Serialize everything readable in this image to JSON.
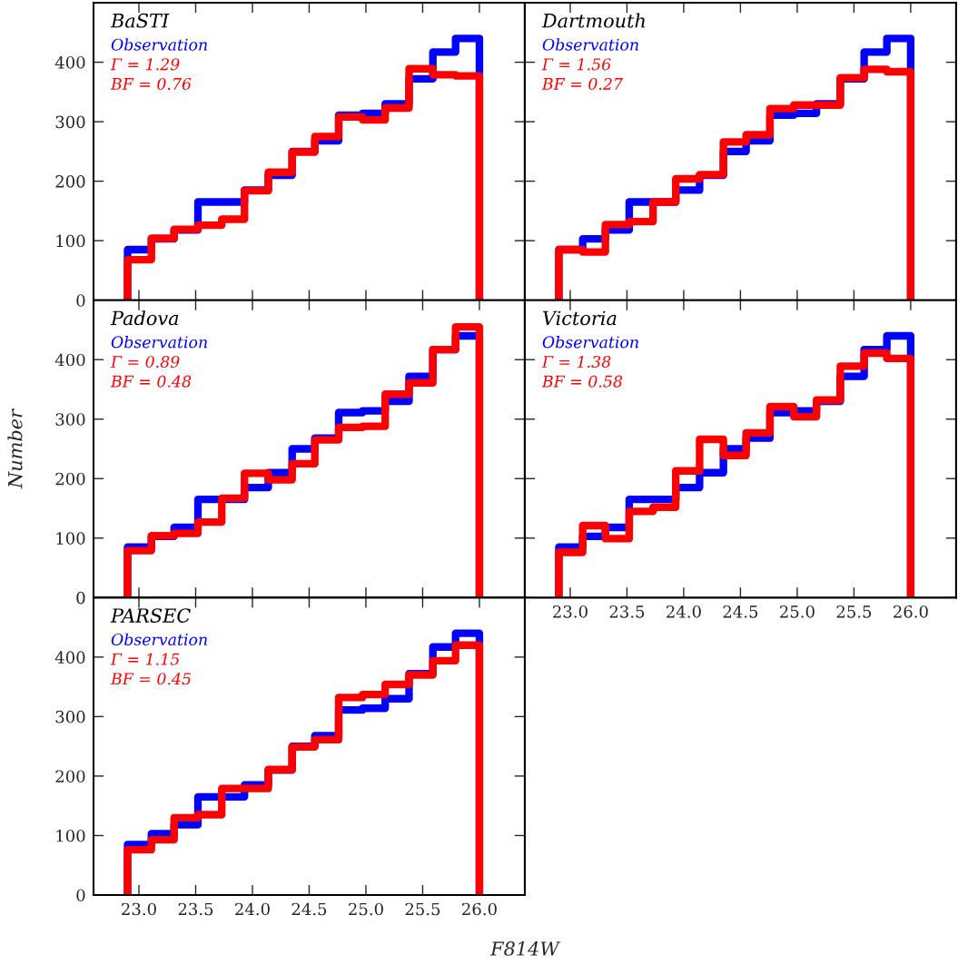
{
  "chart_data": [
    {
      "type": "histogram",
      "title": "BaSTI",
      "bins": [
        22.9,
        23.11,
        23.31,
        23.52,
        23.73,
        23.93,
        24.14,
        24.35,
        24.55,
        24.76,
        24.97,
        25.17,
        25.38,
        25.59,
        25.79,
        26.0
      ],
      "series": [
        {
          "name": "Observation",
          "color": "#0000ff",
          "values": [
            85,
            103,
            118,
            165,
            165,
            185,
            210,
            250,
            268,
            311,
            314,
            330,
            372,
            417,
            440
          ]
        },
        {
          "color": "#ff0000",
          "values": [
            68,
            104,
            119,
            126,
            136,
            184,
            215,
            249,
            275,
            308,
            303,
            323,
            389,
            379,
            377
          ]
        }
      ],
      "annotations": [
        "Γ = 1.29",
        "BF = 0.76"
      ],
      "xlim": [
        22.6,
        26.4
      ],
      "xticks": [
        {
          "value": 23.0,
          "label": null
        },
        {
          "value": 23.5,
          "label": null
        },
        {
          "value": 24.0,
          "label": null
        },
        {
          "value": 24.5,
          "label": null
        },
        {
          "value": 25.0,
          "label": null
        },
        {
          "value": 25.5,
          "label": null
        },
        {
          "value": 26.0,
          "label": null
        }
      ],
      "ylim": [
        0,
        500
      ],
      "yticks": [
        0,
        100,
        200,
        300,
        400
      ],
      "tick_labels": "y"
    },
    {
      "type": "histogram",
      "title": "Dartmouth",
      "bins": [
        22.9,
        23.11,
        23.31,
        23.52,
        23.73,
        23.93,
        24.14,
        24.35,
        24.55,
        24.76,
        24.97,
        25.17,
        25.38,
        25.59,
        25.79,
        26.0
      ],
      "series": [
        {
          "name": "Observation",
          "color": "#0000ff",
          "values": [
            85,
            103,
            118,
            165,
            165,
            185,
            210,
            250,
            268,
            311,
            314,
            330,
            372,
            417,
            440
          ]
        },
        {
          "color": "#ff0000",
          "values": [
            85,
            81,
            127,
            132,
            165,
            204,
            211,
            266,
            278,
            322,
            328,
            328,
            374,
            388,
            384
          ]
        }
      ],
      "annotations": [
        "Γ = 1.56",
        "BF = 0.27"
      ],
      "xlim": [
        22.6,
        26.4
      ],
      "xticks": [
        {
          "value": 23.0,
          "label": null
        },
        {
          "value": 23.5,
          "label": null
        },
        {
          "value": 24.0,
          "label": null
        },
        {
          "value": 24.5,
          "label": null
        },
        {
          "value": 25.0,
          "label": null
        },
        {
          "value": 25.5,
          "label": null
        },
        {
          "value": 26.0,
          "label": null
        }
      ],
      "ylim": [
        0,
        500
      ],
      "yticks": [
        0,
        100,
        200,
        300,
        400
      ],
      "tick_labels": false
    },
    {
      "type": "histogram",
      "title": "Padova",
      "ylabel": "Number",
      "bins": [
        22.9,
        23.11,
        23.31,
        23.52,
        23.73,
        23.93,
        24.14,
        24.35,
        24.55,
        24.76,
        24.97,
        25.17,
        25.38,
        25.59,
        25.79,
        26.0
      ],
      "series": [
        {
          "name": "Observation",
          "color": "#0000ff",
          "values": [
            85,
            103,
            118,
            165,
            165,
            185,
            210,
            250,
            268,
            311,
            314,
            330,
            372,
            417,
            440
          ]
        },
        {
          "color": "#ff0000",
          "values": [
            79,
            104,
            108,
            127,
            167,
            209,
            198,
            225,
            265,
            286,
            288,
            342,
            361,
            417,
            455
          ]
        }
      ],
      "annotations": [
        "Γ = 0.89",
        "BF = 0.48"
      ],
      "xlim": [
        22.6,
        26.4
      ],
      "xticks": [
        {
          "value": 23.0,
          "label": null
        },
        {
          "value": 23.5,
          "label": null
        },
        {
          "value": 24.0,
          "label": null
        },
        {
          "value": 24.5,
          "label": null
        },
        {
          "value": 25.0,
          "label": null
        },
        {
          "value": 25.5,
          "label": null
        },
        {
          "value": 26.0,
          "label": null
        }
      ],
      "ylim": [
        0,
        500
      ],
      "yticks": [
        0,
        100,
        200,
        300,
        400
      ],
      "tick_labels": "y"
    },
    {
      "type": "histogram",
      "title": "Victoria",
      "bins": [
        22.9,
        23.11,
        23.31,
        23.52,
        23.73,
        23.93,
        24.14,
        24.35,
        24.55,
        24.76,
        24.97,
        25.17,
        25.38,
        25.59,
        25.79,
        26.0
      ],
      "series": [
        {
          "name": "Observation",
          "color": "#0000ff",
          "values": [
            85,
            103,
            118,
            165,
            165,
            185,
            210,
            250,
            268,
            311,
            314,
            330,
            372,
            417,
            440
          ]
        },
        {
          "color": "#ff0000",
          "values": [
            76,
            121,
            99,
            145,
            152,
            213,
            266,
            239,
            277,
            321,
            304,
            332,
            389,
            411,
            402
          ]
        }
      ],
      "annotations": [
        "Γ = 1.38",
        "BF = 0.58"
      ],
      "xlim": [
        22.6,
        26.4
      ],
      "xticks": [
        {
          "value": 23.0,
          "label": "23.0"
        },
        {
          "value": 23.5,
          "label": "23.5"
        },
        {
          "value": 24.0,
          "label": "24.0"
        },
        {
          "value": 24.5,
          "label": "24.5"
        },
        {
          "value": 25.0,
          "label": "25.0"
        },
        {
          "value": 25.5,
          "label": "25.5"
        },
        {
          "value": 26.0,
          "label": "26.0"
        }
      ],
      "ylim": [
        0,
        500
      ],
      "yticks": [
        0,
        100,
        200,
        300,
        400
      ],
      "tick_labels": "x"
    },
    {
      "type": "histogram",
      "title": "PARSEC",
      "xlabel": "F814W",
      "bins": [
        22.9,
        23.11,
        23.31,
        23.52,
        23.73,
        23.93,
        24.14,
        24.35,
        24.55,
        24.76,
        24.97,
        25.17,
        25.38,
        25.59,
        25.79,
        26.0
      ],
      "series": [
        {
          "name": "Observation",
          "color": "#0000ff",
          "values": [
            85,
            103,
            118,
            165,
            165,
            185,
            210,
            250,
            268,
            311,
            314,
            330,
            372,
            417,
            440
          ]
        },
        {
          "color": "#ff0000",
          "values": [
            76,
            93,
            130,
            135,
            179,
            179,
            211,
            249,
            261,
            332,
            337,
            354,
            370,
            394,
            420
          ]
        }
      ],
      "annotations": [
        "Γ = 1.15",
        "BF = 0.45"
      ],
      "xlim": [
        22.6,
        26.4
      ],
      "xticks": [
        {
          "value": 23.0,
          "label": "23.0"
        },
        {
          "value": 23.5,
          "label": "23.5"
        },
        {
          "value": 24.0,
          "label": "24.0"
        },
        {
          "value": 24.5,
          "label": "24.5"
        },
        {
          "value": 25.0,
          "label": "25.0"
        },
        {
          "value": 25.5,
          "label": "25.5"
        },
        {
          "value": 26.0,
          "label": "26.0"
        }
      ],
      "ylim": [
        0,
        500
      ],
      "yticks": [
        0,
        100,
        200,
        300,
        400
      ]
    }
  ]
}
